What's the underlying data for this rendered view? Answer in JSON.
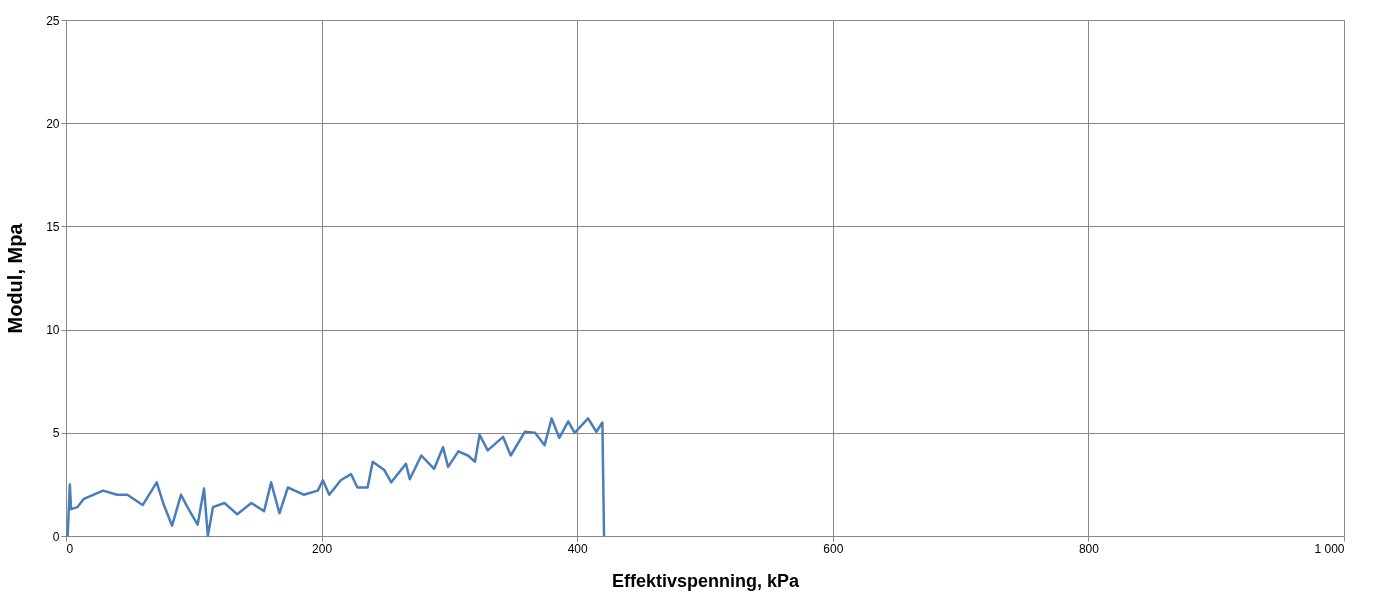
{
  "chart_data": {
    "type": "line",
    "xlabel": "Effektivspenning, kPa",
    "ylabel": "Modul, Mpa",
    "xlim": [
      0,
      1000
    ],
    "ylim": [
      0,
      25
    ],
    "xticks": [
      0,
      200,
      400,
      600,
      800,
      {
        "value": 1000,
        "label": "1 000"
      }
    ],
    "yticks": [
      0,
      5,
      10,
      15,
      20,
      25
    ],
    "grid": true,
    "marker": "none",
    "line_style": "solid",
    "series": [
      {
        "color": "#4a7ebb",
        "x": [
          1.3,
          3,
          4,
          9,
          14,
          29,
          40,
          48,
          60,
          71,
          76,
          83,
          90,
          95,
          103,
          108,
          111,
          115,
          124,
          134,
          145,
          155,
          160.5,
          167,
          173.6,
          186,
          197,
          201,
          206,
          215,
          223,
          228,
          236,
          240,
          249,
          254.5,
          266,
          269,
          278,
          288,
          295,
          299,
          307,
          314.5,
          320,
          323.6,
          330,
          342,
          348,
          359,
          367,
          374.5,
          380,
          386,
          393,
          398,
          408.5,
          415,
          419.7,
          421
        ],
        "values": [
          0,
          2.5,
          1.3,
          1.4,
          1.8,
          2.2,
          2.0,
          2.0,
          1.5,
          2.6,
          1.6,
          0.5,
          2.0,
          1.4,
          0.55,
          2.3,
          0,
          1.4,
          1.6,
          1.05,
          1.6,
          1.2,
          2.6,
          1.1,
          2.35,
          2.0,
          2.2,
          2.7,
          2.0,
          2.7,
          3.0,
          2.35,
          2.35,
          3.6,
          3.2,
          2.6,
          3.5,
          2.75,
          3.9,
          3.25,
          4.3,
          3.35,
          4.1,
          3.9,
          3.6,
          4.9,
          4.15,
          4.8,
          3.9,
          5.05,
          5.0,
          4.4,
          5.7,
          4.75,
          5.55,
          5.0,
          5.7,
          5.05,
          5.5,
          0
        ]
      }
    ]
  }
}
